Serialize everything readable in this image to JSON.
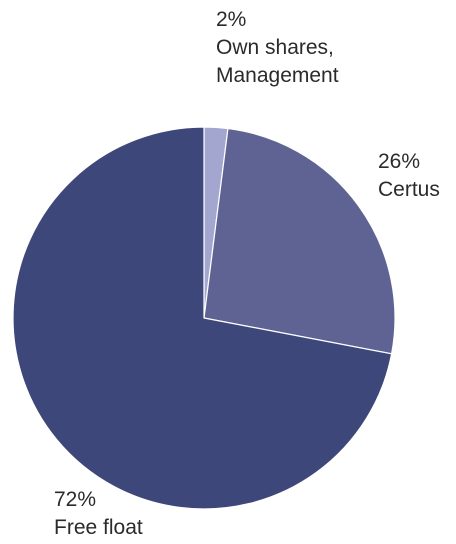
{
  "chart_data": {
    "type": "pie",
    "title": "",
    "slices": [
      {
        "label": "Own shares, Management",
        "label_lines": [
          "Own shares,",
          "Management"
        ],
        "value": 2,
        "value_label": "2%",
        "color": "#a3a6cf"
      },
      {
        "label": "Certus",
        "label_lines": [
          "Certus"
        ],
        "value": 26,
        "value_label": "26%",
        "color": "#5e6393"
      },
      {
        "label": "Free float",
        "label_lines": [
          "Free float"
        ],
        "value": 72,
        "value_label": "72%",
        "color": "#3d4779"
      }
    ],
    "start_angle": "12 o'clock",
    "direction": "clockwise",
    "slice_border_color": "#ffffff",
    "legend": "none"
  }
}
